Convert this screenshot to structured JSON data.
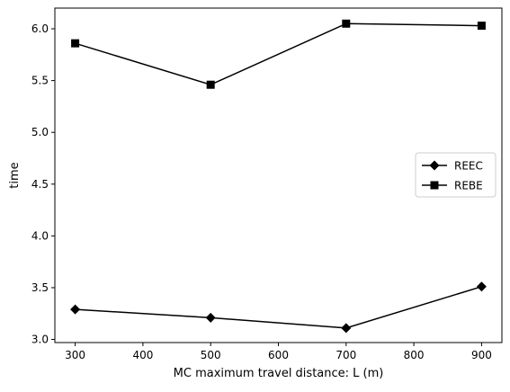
{
  "chart_data": {
    "type": "line",
    "title": "",
    "xlabel": "MC maximum travel distance: L (m)",
    "ylabel": "time",
    "x": [
      300,
      500,
      700,
      900
    ],
    "xlim": [
      270,
      930
    ],
    "ylim": [
      2.97,
      6.2
    ],
    "xticks": [
      300,
      400,
      500,
      600,
      700,
      800,
      900
    ],
    "yticks": [
      3.0,
      3.5,
      4.0,
      4.5,
      5.0,
      5.5,
      6.0
    ],
    "ytick_labels": [
      "3.0",
      "3.5",
      "4.0",
      "4.5",
      "5.0",
      "5.5",
      "6.0"
    ],
    "grid": false,
    "legend_position": "center-right",
    "series": [
      {
        "name": "REEC",
        "marker": "diamond",
        "color": "#000000",
        "values": [
          3.29,
          3.21,
          3.11,
          3.51
        ]
      },
      {
        "name": "REBE",
        "marker": "square",
        "color": "#000000",
        "values": [
          5.86,
          5.46,
          6.05,
          6.03
        ]
      }
    ]
  }
}
